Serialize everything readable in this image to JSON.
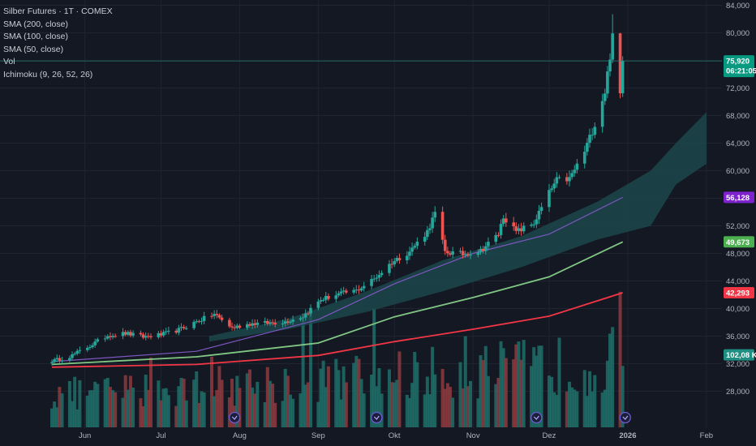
{
  "legend": {
    "symbol": "Silber Futures · 1T · COMEX",
    "sma200": "SMA (200, close)",
    "sma100": "SMA (100, close)",
    "sma50": "SMA (50, close)",
    "vol": "Vol",
    "ichimoku": "Ichimoku (9, 26, 52, 26)"
  },
  "colors": {
    "background": "#141823",
    "up": "#26a69a",
    "down": "#ef5350",
    "sma200": "#f23645",
    "sma100": "#81c784",
    "sma50": "#7e57c2",
    "cloud": "#1c4c50",
    "price_tag": "#089981",
    "sma50_tag": "#7e22ce",
    "sma100_tag": "#4caf50",
    "sma200_tag": "#f23645",
    "vol_tag": "#1f8f83"
  },
  "chart_data": {
    "type": "candlestick",
    "title": "Silber Futures · 1T · COMEX",
    "x_labels": [
      "Jun",
      "Jul",
      "Aug",
      "Sep",
      "Okt",
      "Nov",
      "Dez",
      "2026",
      "Feb"
    ],
    "y_ticks": [
      "28,000",
      "32,000",
      "36,000",
      "40,000",
      "44,000",
      "48,000",
      "52,000",
      "56,000",
      "60,000",
      "64,000",
      "68,000",
      "72,000",
      "76,000",
      "80,000",
      "84,000",
      "88,000"
    ],
    "y_range": [
      26500,
      88500
    ],
    "x_dates": [
      "2025-05-19",
      "2026-02-02"
    ],
    "last_price": "75,920",
    "countdown": "06:21:05",
    "tags": {
      "sma50": "56,128",
      "sma100": "49,673",
      "sma200": "42,293",
      "volume": "102,08 K"
    },
    "closes": [
      [
        "2025-05-20",
        32.45
      ],
      [
        "2025-05-27",
        33.2
      ],
      [
        "2025-06-03",
        34.6
      ],
      [
        "2025-06-10",
        36.1
      ],
      [
        "2025-06-17",
        36.4
      ],
      [
        "2025-06-24",
        35.9
      ],
      [
        "2025-07-01",
        36.2
      ],
      [
        "2025-07-08",
        36.9
      ],
      [
        "2025-07-15",
        38.1
      ],
      [
        "2025-07-22",
        39.2
      ],
      [
        "2025-07-29",
        37.2
      ],
      [
        "2025-08-05",
        37.8
      ],
      [
        "2025-08-12",
        37.9
      ],
      [
        "2025-08-19",
        38.1
      ],
      [
        "2025-08-26",
        38.9
      ],
      [
        "2025-09-02",
        41.3
      ],
      [
        "2025-09-09",
        42.1
      ],
      [
        "2025-09-16",
        42.6
      ],
      [
        "2025-09-23",
        44.3
      ],
      [
        "2025-09-30",
        46.7
      ],
      [
        "2025-10-07",
        48.3
      ],
      [
        "2025-10-14",
        51.2
      ],
      [
        "2025-10-17",
        53.8
      ],
      [
        "2025-10-21",
        48.2
      ],
      [
        "2025-10-28",
        47.9
      ],
      [
        "2025-11-04",
        48.4
      ],
      [
        "2025-11-11",
        50.8
      ],
      [
        "2025-11-13",
        53.4
      ],
      [
        "2025-11-18",
        51.1
      ],
      [
        "2025-11-25",
        52.4
      ],
      [
        "2025-12-01",
        56.8
      ],
      [
        "2025-12-04",
        58.6
      ],
      [
        "2025-12-09",
        58.8
      ],
      [
        "2025-12-15",
        62.8
      ],
      [
        "2025-12-19",
        66.8
      ],
      [
        "2025-12-23",
        71.5
      ],
      [
        "2025-12-26",
        79.3
      ],
      [
        "2025-12-29",
        71.1
      ],
      [
        "2025-12-30",
        75.92
      ]
    ],
    "indicators": {
      "sma50": [
        [
          "2025-05-19",
          32.3
        ],
        [
          "2025-07-15",
          33.8
        ],
        [
          "2025-09-01",
          38.4
        ],
        [
          "2025-10-01",
          43.6
        ],
        [
          "2025-11-01",
          48.0
        ],
        [
          "2025-12-01",
          50.8
        ],
        [
          "2025-12-30",
          56.128
        ]
      ],
      "sma100": [
        [
          "2025-05-19",
          31.9
        ],
        [
          "2025-07-15",
          33.0
        ],
        [
          "2025-09-01",
          35.0
        ],
        [
          "2025-10-01",
          38.8
        ],
        [
          "2025-11-01",
          41.6
        ],
        [
          "2025-12-01",
          44.6
        ],
        [
          "2025-12-30",
          49.673
        ]
      ],
      "sma200": [
        [
          "2025-05-19",
          31.5
        ],
        [
          "2025-07-15",
          31.9
        ],
        [
          "2025-09-01",
          33.2
        ],
        [
          "2025-10-01",
          35.2
        ],
        [
          "2025-11-01",
          37.0
        ],
        [
          "2025-12-01",
          38.9
        ],
        [
          "2025-12-30",
          42.293
        ]
      ]
    }
  }
}
